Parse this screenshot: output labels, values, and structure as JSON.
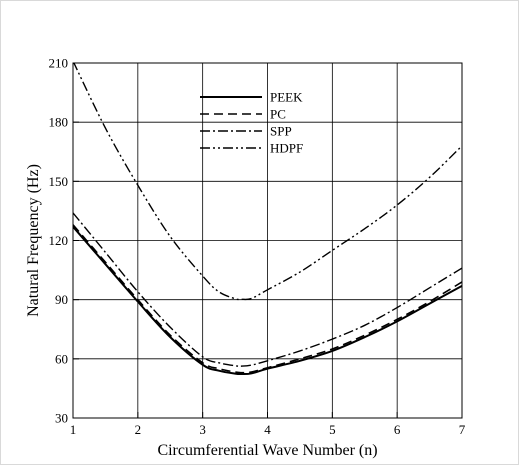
{
  "chart_data": {
    "type": "line",
    "xlabel": "Circumferential Wave Number (n)",
    "ylabel": "Natural Frequency (Hz)",
    "xlim": [
      1,
      7
    ],
    "ylim": [
      30,
      210
    ],
    "x_ticks": [
      1,
      2,
      3,
      4,
      5,
      6,
      7
    ],
    "y_ticks": [
      30,
      60,
      90,
      120,
      150,
      180,
      210
    ],
    "grid": true,
    "legend_position": "top-center",
    "series": [
      {
        "name": "PEEK",
        "dash": "solid",
        "x": [
          1,
          1.5,
          2,
          2.5,
          3,
          3.25,
          3.5,
          3.6,
          3.75,
          4,
          4.5,
          5,
          5.5,
          6,
          6.5,
          7
        ],
        "values": [
          127,
          108,
          89,
          71,
          57,
          54,
          52.5,
          52.3,
          52.6,
          55,
          59,
          64,
          71,
          79,
          88,
          97
        ]
      },
      {
        "name": "PC",
        "dash": "dash",
        "x": [
          1,
          1.5,
          2,
          2.5,
          3,
          3.25,
          3.5,
          3.6,
          3.75,
          4,
          4.5,
          5,
          5.5,
          6,
          6.5,
          7
        ],
        "values": [
          128,
          109,
          90,
          72,
          58,
          55,
          53.3,
          53,
          53.3,
          55.5,
          60,
          65,
          72,
          80,
          89,
          99
        ]
      },
      {
        "name": "SPP",
        "dash": "dashdot",
        "x": [
          1,
          1.5,
          2,
          2.5,
          3,
          3.25,
          3.5,
          3.6,
          3.75,
          4,
          4.5,
          5,
          5.5,
          6,
          6.5,
          7
        ],
        "values": [
          134,
          114,
          94,
          76,
          61,
          58,
          56.5,
          56.3,
          56.8,
          59,
          64,
          70,
          77,
          86,
          96,
          106
        ]
      },
      {
        "name": "HDPF",
        "dash": "dashdotdot",
        "x": [
          1,
          1.5,
          2,
          2.5,
          3,
          3.25,
          3.5,
          3.6,
          3.75,
          4,
          4.5,
          5,
          5.5,
          6,
          6.5,
          7
        ],
        "values": [
          211,
          177,
          148,
          122,
          102,
          94,
          90.5,
          90.2,
          90.6,
          95,
          104,
          115,
          126,
          138,
          152,
          168
        ]
      }
    ]
  }
}
